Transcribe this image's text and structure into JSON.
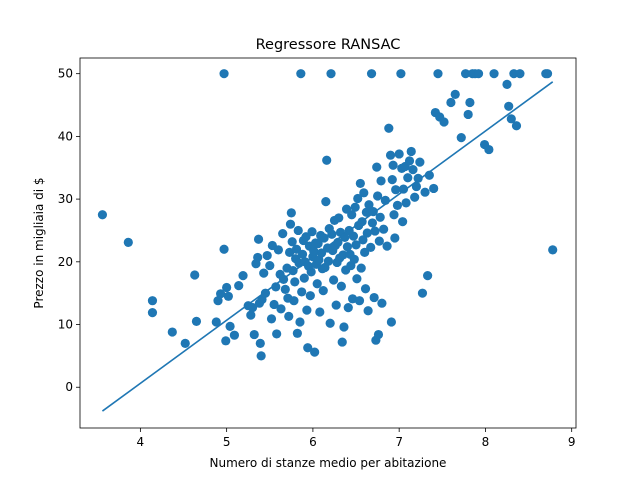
{
  "chart_data": {
    "type": "scatter",
    "title": "Regressore RANSAC",
    "xlabel": "Numero di stanze medio per abitazione",
    "ylabel": "Prezzo in migliaia di $",
    "xlim": [
      3.3,
      9.05
    ],
    "ylim": [
      -6.5,
      52.5
    ],
    "xticks": [
      4,
      5,
      6,
      7,
      8,
      9
    ],
    "yticks": [
      0,
      10,
      20,
      30,
      40,
      50
    ],
    "grid": false,
    "colors": {
      "marker": "#1f77b4",
      "line": "#1f77b4"
    },
    "series": [
      {
        "kind": "scatter",
        "points": [
          [
            3.56,
            27.5
          ],
          [
            3.86,
            23.1
          ],
          [
            4.14,
            13.8
          ],
          [
            4.14,
            11.9
          ],
          [
            4.37,
            8.8
          ],
          [
            4.52,
            7.0
          ],
          [
            4.63,
            17.9
          ],
          [
            4.65,
            10.5
          ],
          [
            4.88,
            10.4
          ],
          [
            4.9,
            13.8
          ],
          [
            4.93,
            14.9
          ],
          [
            4.97,
            22.0
          ],
          [
            4.97,
            50.0
          ],
          [
            4.99,
            7.4
          ],
          [
            5.0,
            15.9
          ],
          [
            5.02,
            14.5
          ],
          [
            5.04,
            9.7
          ],
          [
            5.09,
            8.3
          ],
          [
            5.14,
            16.2
          ],
          [
            5.19,
            17.8
          ],
          [
            5.25,
            13.0
          ],
          [
            5.28,
            11.5
          ],
          [
            5.3,
            12.7
          ],
          [
            5.32,
            8.4
          ],
          [
            5.34,
            19.7
          ],
          [
            5.36,
            20.7
          ],
          [
            5.37,
            23.6
          ],
          [
            5.38,
            13.4
          ],
          [
            5.39,
            7.0
          ],
          [
            5.4,
            5.0
          ],
          [
            5.41,
            14.0
          ],
          [
            5.43,
            18.2
          ],
          [
            5.45,
            15.0
          ],
          [
            5.47,
            21.0
          ],
          [
            5.5,
            19.4
          ],
          [
            5.52,
            10.9
          ],
          [
            5.53,
            22.6
          ],
          [
            5.55,
            13.2
          ],
          [
            5.57,
            16.0
          ],
          [
            5.58,
            8.5
          ],
          [
            5.6,
            21.9
          ],
          [
            5.62,
            18.0
          ],
          [
            5.63,
            12.5
          ],
          [
            5.65,
            24.5
          ],
          [
            5.66,
            17.2
          ],
          [
            5.68,
            15.6
          ],
          [
            5.7,
            19.0
          ],
          [
            5.71,
            14.2
          ],
          [
            5.72,
            11.3
          ],
          [
            5.73,
            21.5
          ],
          [
            5.74,
            26.0
          ],
          [
            5.75,
            27.8
          ],
          [
            5.76,
            23.2
          ],
          [
            5.77,
            18.6
          ],
          [
            5.78,
            13.8
          ],
          [
            5.79,
            16.8
          ],
          [
            5.8,
            20.5
          ],
          [
            5.81,
            22.0
          ],
          [
            5.82,
            8.6
          ],
          [
            5.83,
            25.0
          ],
          [
            5.84,
            19.8
          ],
          [
            5.85,
            10.4
          ],
          [
            5.86,
            50.0
          ],
          [
            5.87,
            15.2
          ],
          [
            5.88,
            21.2
          ],
          [
            5.89,
            23.4
          ],
          [
            5.9,
            17.4
          ],
          [
            5.91,
            20.0
          ],
          [
            5.92,
            24.0
          ],
          [
            5.93,
            12.3
          ],
          [
            5.94,
            6.3
          ],
          [
            5.95,
            19.3
          ],
          [
            5.96,
            22.5
          ],
          [
            5.97,
            14.6
          ],
          [
            5.98,
            18.4
          ],
          [
            5.99,
            24.8
          ],
          [
            6.0,
            20.8
          ],
          [
            6.01,
            21.7
          ],
          [
            6.02,
            5.6
          ],
          [
            6.03,
            23.0
          ],
          [
            6.04,
            19.6
          ],
          [
            6.05,
            16.5
          ],
          [
            6.06,
            22.9
          ],
          [
            6.07,
            20.3
          ],
          [
            6.08,
            12.0
          ],
          [
            6.09,
            24.2
          ],
          [
            6.1,
            21.4
          ],
          [
            6.11,
            18.9
          ],
          [
            6.12,
            15.4
          ],
          [
            6.13,
            23.8
          ],
          [
            6.14,
            19.1
          ],
          [
            6.15,
            29.6
          ],
          [
            6.16,
            36.2
          ],
          [
            6.17,
            22.2
          ],
          [
            6.18,
            20.1
          ],
          [
            6.19,
            25.3
          ],
          [
            6.2,
            10.2
          ],
          [
            6.21,
            50.0
          ],
          [
            6.22,
            24.4
          ],
          [
            6.23,
            21.8
          ],
          [
            6.24,
            17.1
          ],
          [
            6.25,
            26.6
          ],
          [
            6.26,
            22.6
          ],
          [
            6.27,
            13.1
          ],
          [
            6.28,
            19.9
          ],
          [
            6.29,
            23.1
          ],
          [
            6.3,
            27.0
          ],
          [
            6.31,
            20.6
          ],
          [
            6.32,
            24.7
          ],
          [
            6.33,
            16.1
          ],
          [
            6.34,
            7.2
          ],
          [
            6.35,
            21.1
          ],
          [
            6.36,
            9.6
          ],
          [
            6.37,
            23.9
          ],
          [
            6.38,
            18.7
          ],
          [
            6.39,
            28.4
          ],
          [
            6.4,
            22.4
          ],
          [
            6.41,
            12.7
          ],
          [
            6.42,
            25.0
          ],
          [
            6.43,
            21.2
          ],
          [
            6.44,
            19.4
          ],
          [
            6.45,
            27.5
          ],
          [
            6.46,
            14.1
          ],
          [
            6.47,
            24.1
          ],
          [
            6.48,
            20.4
          ],
          [
            6.49,
            28.7
          ],
          [
            6.5,
            22.7
          ],
          [
            6.51,
            17.3
          ],
          [
            6.52,
            30.1
          ],
          [
            6.53,
            25.8
          ],
          [
            6.54,
            13.8
          ],
          [
            6.55,
            32.5
          ],
          [
            6.56,
            19.0
          ],
          [
            6.57,
            26.4
          ],
          [
            6.58,
            23.5
          ],
          [
            6.59,
            31.0
          ],
          [
            6.6,
            21.5
          ],
          [
            6.61,
            15.7
          ],
          [
            6.62,
            27.9
          ],
          [
            6.63,
            24.6
          ],
          [
            6.64,
            12.2
          ],
          [
            6.65,
            29.1
          ],
          [
            6.67,
            22.3
          ],
          [
            6.68,
            50.0
          ],
          [
            6.69,
            26.2
          ],
          [
            6.7,
            28.0
          ],
          [
            6.71,
            14.3
          ],
          [
            6.72,
            24.9
          ],
          [
            6.73,
            7.5
          ],
          [
            6.74,
            35.1
          ],
          [
            6.75,
            30.5
          ],
          [
            6.76,
            8.4
          ],
          [
            6.77,
            23.3
          ],
          [
            6.78,
            27.1
          ],
          [
            6.79,
            32.9
          ],
          [
            6.8,
            13.4
          ],
          [
            6.82,
            25.2
          ],
          [
            6.84,
            29.8
          ],
          [
            6.86,
            22.5
          ],
          [
            6.88,
            41.3
          ],
          [
            6.9,
            37.0
          ],
          [
            6.91,
            10.4
          ],
          [
            6.92,
            33.1
          ],
          [
            6.93,
            35.4
          ],
          [
            6.94,
            27.5
          ],
          [
            6.95,
            23.8
          ],
          [
            6.96,
            31.5
          ],
          [
            6.98,
            29.0
          ],
          [
            7.0,
            37.2
          ],
          [
            7.02,
            50.0
          ],
          [
            7.03,
            34.9
          ],
          [
            7.04,
            26.4
          ],
          [
            7.05,
            31.6
          ],
          [
            7.07,
            35.2
          ],
          [
            7.08,
            29.4
          ],
          [
            7.1,
            33.4
          ],
          [
            7.12,
            36.1
          ],
          [
            7.14,
            37.6
          ],
          [
            7.16,
            34.7
          ],
          [
            7.18,
            30.3
          ],
          [
            7.2,
            32.0
          ],
          [
            7.22,
            33.3
          ],
          [
            7.24,
            35.9
          ],
          [
            7.27,
            15.0
          ],
          [
            7.3,
            31.1
          ],
          [
            7.33,
            17.8
          ],
          [
            7.35,
            33.8
          ],
          [
            7.4,
            31.7
          ],
          [
            7.42,
            43.8
          ],
          [
            7.45,
            50.0
          ],
          [
            7.47,
            43.1
          ],
          [
            7.52,
            42.3
          ],
          [
            7.6,
            45.4
          ],
          [
            7.65,
            46.7
          ],
          [
            7.72,
            39.8
          ],
          [
            7.77,
            50.0
          ],
          [
            7.8,
            43.5
          ],
          [
            7.82,
            45.4
          ],
          [
            7.85,
            50.0
          ],
          [
            7.88,
            50.0
          ],
          [
            7.92,
            50.0
          ],
          [
            7.99,
            38.7
          ],
          [
            8.04,
            37.9
          ],
          [
            8.1,
            50.0
          ],
          [
            8.25,
            48.3
          ],
          [
            8.27,
            44.8
          ],
          [
            8.3,
            42.8
          ],
          [
            8.33,
            50.0
          ],
          [
            8.36,
            41.7
          ],
          [
            8.4,
            50.0
          ],
          [
            8.7,
            50.0
          ],
          [
            8.72,
            50.0
          ],
          [
            8.78,
            21.9
          ]
        ]
      },
      {
        "kind": "line",
        "points": [
          [
            3.56,
            -3.8
          ],
          [
            8.78,
            48.7
          ]
        ]
      }
    ]
  }
}
